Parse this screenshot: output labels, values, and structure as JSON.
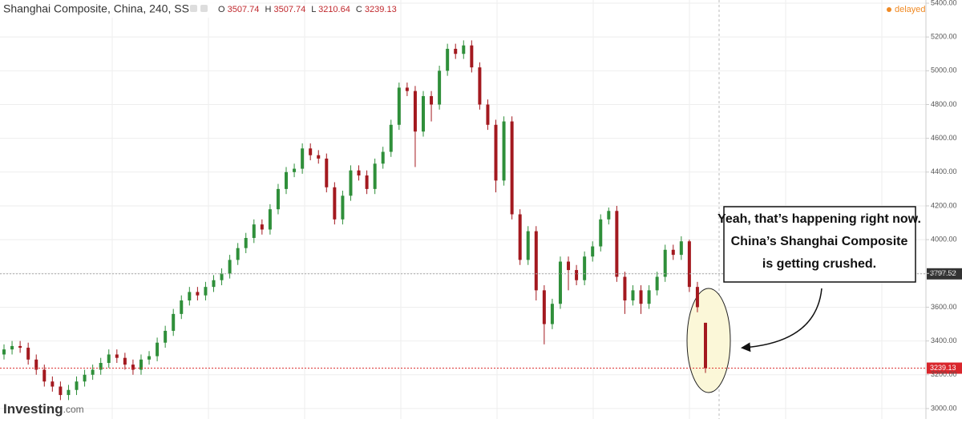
{
  "chart_data": {
    "type": "candlestick",
    "title": "Shanghai Composite, China, 240, SS",
    "ohlc_labels": [
      "O",
      "H",
      "L",
      "C"
    ],
    "status": "delayed",
    "logo": {
      "brand": "Investing",
      "suffix": ".com"
    },
    "annotation": [
      "Yeah, that’s happening right now.",
      "China’s Shanghai Composite",
      "is getting crushed."
    ],
    "reference_price": {
      "value": 3797.52,
      "label": "3797.52"
    },
    "up_color": "#2f8f3a",
    "down_color": "#a3191f",
    "ylim": [
      2938,
      5419
    ],
    "yticks": [
      {
        "value": 3000,
        "label": "3000.00"
      },
      {
        "value": 3200,
        "label": "3200.00"
      },
      {
        "value": 3400,
        "label": "3400.00"
      },
      {
        "value": 3600,
        "label": "3600.00"
      },
      {
        "value": 3800,
        "label": "3800.00"
      },
      {
        "value": 4000,
        "label": "4000.00"
      },
      {
        "value": 4200,
        "label": "4200.00"
      },
      {
        "value": 4400,
        "label": "4400.00"
      },
      {
        "value": 4600,
        "label": "4600.00"
      },
      {
        "value": 4800,
        "label": "4800.00"
      },
      {
        "value": 5000,
        "label": "5000.00"
      },
      {
        "value": 5200,
        "label": "5200.00"
      },
      {
        "value": 5400,
        "label": "5400.00"
      }
    ],
    "grid": true,
    "open": [
      3320,
      3350,
      3370,
      3360,
      3290,
      3230,
      3160,
      3130,
      3080,
      3110,
      3160,
      3200,
      3230,
      3270,
      3320,
      3300,
      3260,
      3230,
      3290,
      3310,
      3390,
      3460,
      3560,
      3640,
      3690,
      3670,
      3720,
      3760,
      3800,
      3880,
      3950,
      4010,
      4090,
      4060,
      4180,
      4300,
      4400,
      4420,
      4540,
      4500,
      4480,
      4310,
      4120,
      4260,
      4410,
      4380,
      4300,
      4450,
      4520,
      4680,
      4900,
      4880,
      4640,
      4850,
      4800,
      5000,
      5130,
      5100,
      5150,
      5020,
      4800,
      4680,
      4350,
      4700,
      4150,
      3880,
      4050,
      3700,
      3500,
      3620,
      3870,
      3820,
      3760,
      3900,
      3960,
      4120,
      4170,
      3780,
      3640,
      3700,
      3620,
      3700,
      3780,
      3940,
      3910,
      3990,
      3720,
      3507.74
    ],
    "high": [
      3380,
      3400,
      3400,
      3390,
      3320,
      3260,
      3190,
      3160,
      3140,
      3190,
      3230,
      3260,
      3300,
      3350,
      3350,
      3330,
      3290,
      3320,
      3340,
      3420,
      3490,
      3590,
      3670,
      3720,
      3720,
      3750,
      3790,
      3830,
      3910,
      3980,
      4040,
      4120,
      4120,
      4210,
      4330,
      4430,
      4450,
      4570,
      4570,
      4530,
      4510,
      4340,
      4290,
      4440,
      4440,
      4410,
      4480,
      4550,
      4710,
      4930,
      4930,
      4910,
      4880,
      4880,
      5030,
      5160,
      5160,
      5180,
      5180,
      5050,
      4830,
      4710,
      4730,
      4730,
      4180,
      4080,
      4080,
      3730,
      3650,
      3900,
      3900,
      3850,
      3930,
      3990,
      4150,
      4190,
      4200,
      3810,
      3730,
      3730,
      3730,
      3810,
      3970,
      3970,
      4020,
      4000,
      3750,
      3507.74
    ],
    "low": [
      3290,
      3320,
      3330,
      3260,
      3200,
      3130,
      3100,
      3050,
      3050,
      3080,
      3130,
      3170,
      3200,
      3240,
      3270,
      3230,
      3200,
      3200,
      3260,
      3280,
      3360,
      3430,
      3530,
      3610,
      3640,
      3640,
      3690,
      3730,
      3770,
      3850,
      3920,
      3980,
      4030,
      4030,
      4150,
      4270,
      4370,
      4390,
      4470,
      4450,
      4280,
      4090,
      4090,
      4230,
      4350,
      4270,
      4270,
      4420,
      4490,
      4650,
      4850,
      4430,
      4610,
      4700,
      4770,
      4970,
      5070,
      5070,
      4990,
      4770,
      4650,
      4280,
      4320,
      4120,
      3850,
      3850,
      3640,
      3380,
      3470,
      3590,
      3700,
      3730,
      3730,
      3870,
      3930,
      4090,
      3750,
      3560,
      3610,
      3560,
      3590,
      3670,
      3750,
      3880,
      3880,
      3690,
      3570,
      3210.64
    ],
    "close": [
      3350,
      3370,
      3360,
      3290,
      3230,
      3160,
      3130,
      3080,
      3110,
      3160,
      3200,
      3230,
      3270,
      3320,
      3300,
      3260,
      3230,
      3290,
      3310,
      3390,
      3460,
      3560,
      3640,
      3690,
      3670,
      3720,
      3760,
      3800,
      3880,
      3950,
      4010,
      4090,
      4060,
      4180,
      4300,
      4400,
      4420,
      4540,
      4500,
      4480,
      4310,
      4120,
      4260,
      4410,
      4380,
      4300,
      4450,
      4520,
      4680,
      4900,
      4880,
      4640,
      4850,
      4800,
      5000,
      5130,
      5100,
      5150,
      5020,
      4800,
      4680,
      4350,
      4700,
      4150,
      3880,
      4050,
      3700,
      3500,
      3620,
      3870,
      3820,
      3760,
      3900,
      3960,
      4120,
      4170,
      3780,
      3640,
      3700,
      3620,
      3700,
      3780,
      3940,
      3910,
      3990,
      3720,
      3600,
      3239.13
    ]
  }
}
